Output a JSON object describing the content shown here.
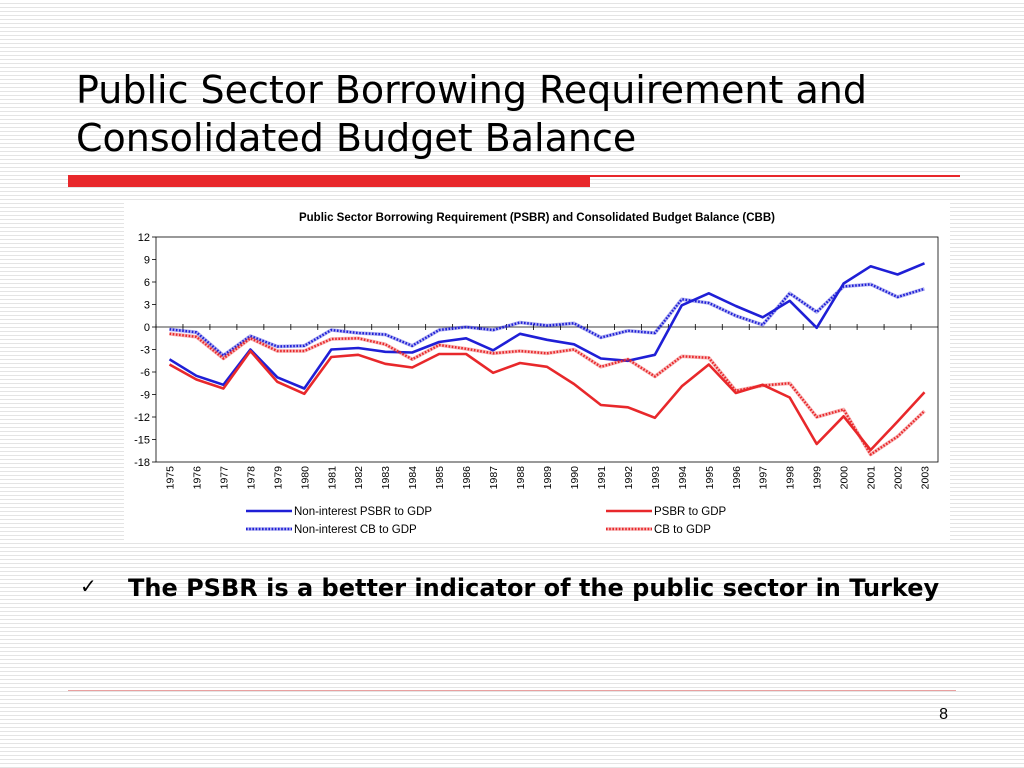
{
  "slide": {
    "title": "Public Sector Borrowing Requirement and Consolidated Budget Balance",
    "bullet": "The PSBR is a better indicator of the public sector in Turkey",
    "bullet_marker": "✓",
    "page_number": "8",
    "accent_color": "#e8282b"
  },
  "chart_data": {
    "type": "line",
    "title": "Public Sector Borrowing Requirement (PSBR) and Consolidated Budget Balance (CBB)",
    "xlabel": "",
    "ylabel": "",
    "categories": [
      "1975",
      "1976",
      "1977",
      "1978",
      "1979",
      "1980",
      "1981",
      "1982",
      "1983",
      "1984",
      "1985",
      "1986",
      "1987",
      "1988",
      "1989",
      "1990",
      "1991",
      "1992",
      "1993",
      "1994",
      "1995",
      "1996",
      "1997",
      "1998",
      "1999",
      "2000",
      "2001",
      "2002",
      "2003"
    ],
    "ylim": [
      -18,
      12
    ],
    "yticks": [
      12,
      9,
      6,
      3,
      0,
      -3,
      -6,
      -9,
      -12,
      -15,
      -18
    ],
    "grid": false,
    "legend_position": "bottom",
    "series": [
      {
        "name": "Non-interest PSBR to GDP",
        "color": "#1f1fd6",
        "style": "solid",
        "values": [
          -4.3,
          -6.5,
          -7.7,
          -3.0,
          -6.7,
          -8.2,
          -3.0,
          -2.8,
          -3.3,
          -3.4,
          -2.0,
          -1.5,
          -3.1,
          -0.9,
          -1.7,
          -2.3,
          -4.2,
          -4.5,
          -3.7,
          2.9,
          4.5,
          2.8,
          1.3,
          3.5,
          -0.1,
          5.8,
          8.1,
          7.0,
          8.5
        ]
      },
      {
        "name": "PSBR to GDP",
        "color": "#e8282b",
        "style": "solid",
        "values": [
          -5.0,
          -7.0,
          -8.2,
          -3.2,
          -7.3,
          -8.9,
          -4.0,
          -3.7,
          -4.9,
          -5.4,
          -3.6,
          -3.6,
          -6.1,
          -4.8,
          -5.3,
          -7.6,
          -10.4,
          -10.7,
          -12.1,
          -7.9,
          -5.0,
          -8.8,
          -7.7,
          -9.4,
          -15.6,
          -11.9,
          -16.4,
          -12.6,
          -8.7
        ]
      },
      {
        "name": "Non-interest CB to GDP",
        "color": "#1f1fd6",
        "style": "dotted",
        "values": [
          -0.3,
          -0.7,
          -3.8,
          -1.2,
          -2.6,
          -2.5,
          -0.4,
          -0.8,
          -1.0,
          -2.5,
          -0.4,
          0.0,
          -0.4,
          0.6,
          0.2,
          0.5,
          -1.4,
          -0.5,
          -0.8,
          3.7,
          3.2,
          1.5,
          0.3,
          4.5,
          2.0,
          5.4,
          5.7,
          4.0,
          5.1
        ]
      },
      {
        "name": "CB to GDP",
        "color": "#e8282b",
        "style": "dotted",
        "values": [
          -0.9,
          -1.3,
          -4.2,
          -1.5,
          -3.2,
          -3.2,
          -1.6,
          -1.5,
          -2.3,
          -4.3,
          -2.4,
          -2.9,
          -3.5,
          -3.2,
          -3.5,
          -3.0,
          -5.3,
          -4.3,
          -6.6,
          -3.9,
          -4.1,
          -8.5,
          -7.8,
          -7.5,
          -12.0,
          -11.0,
          -17.0,
          -14.6,
          -11.2
        ]
      }
    ]
  }
}
